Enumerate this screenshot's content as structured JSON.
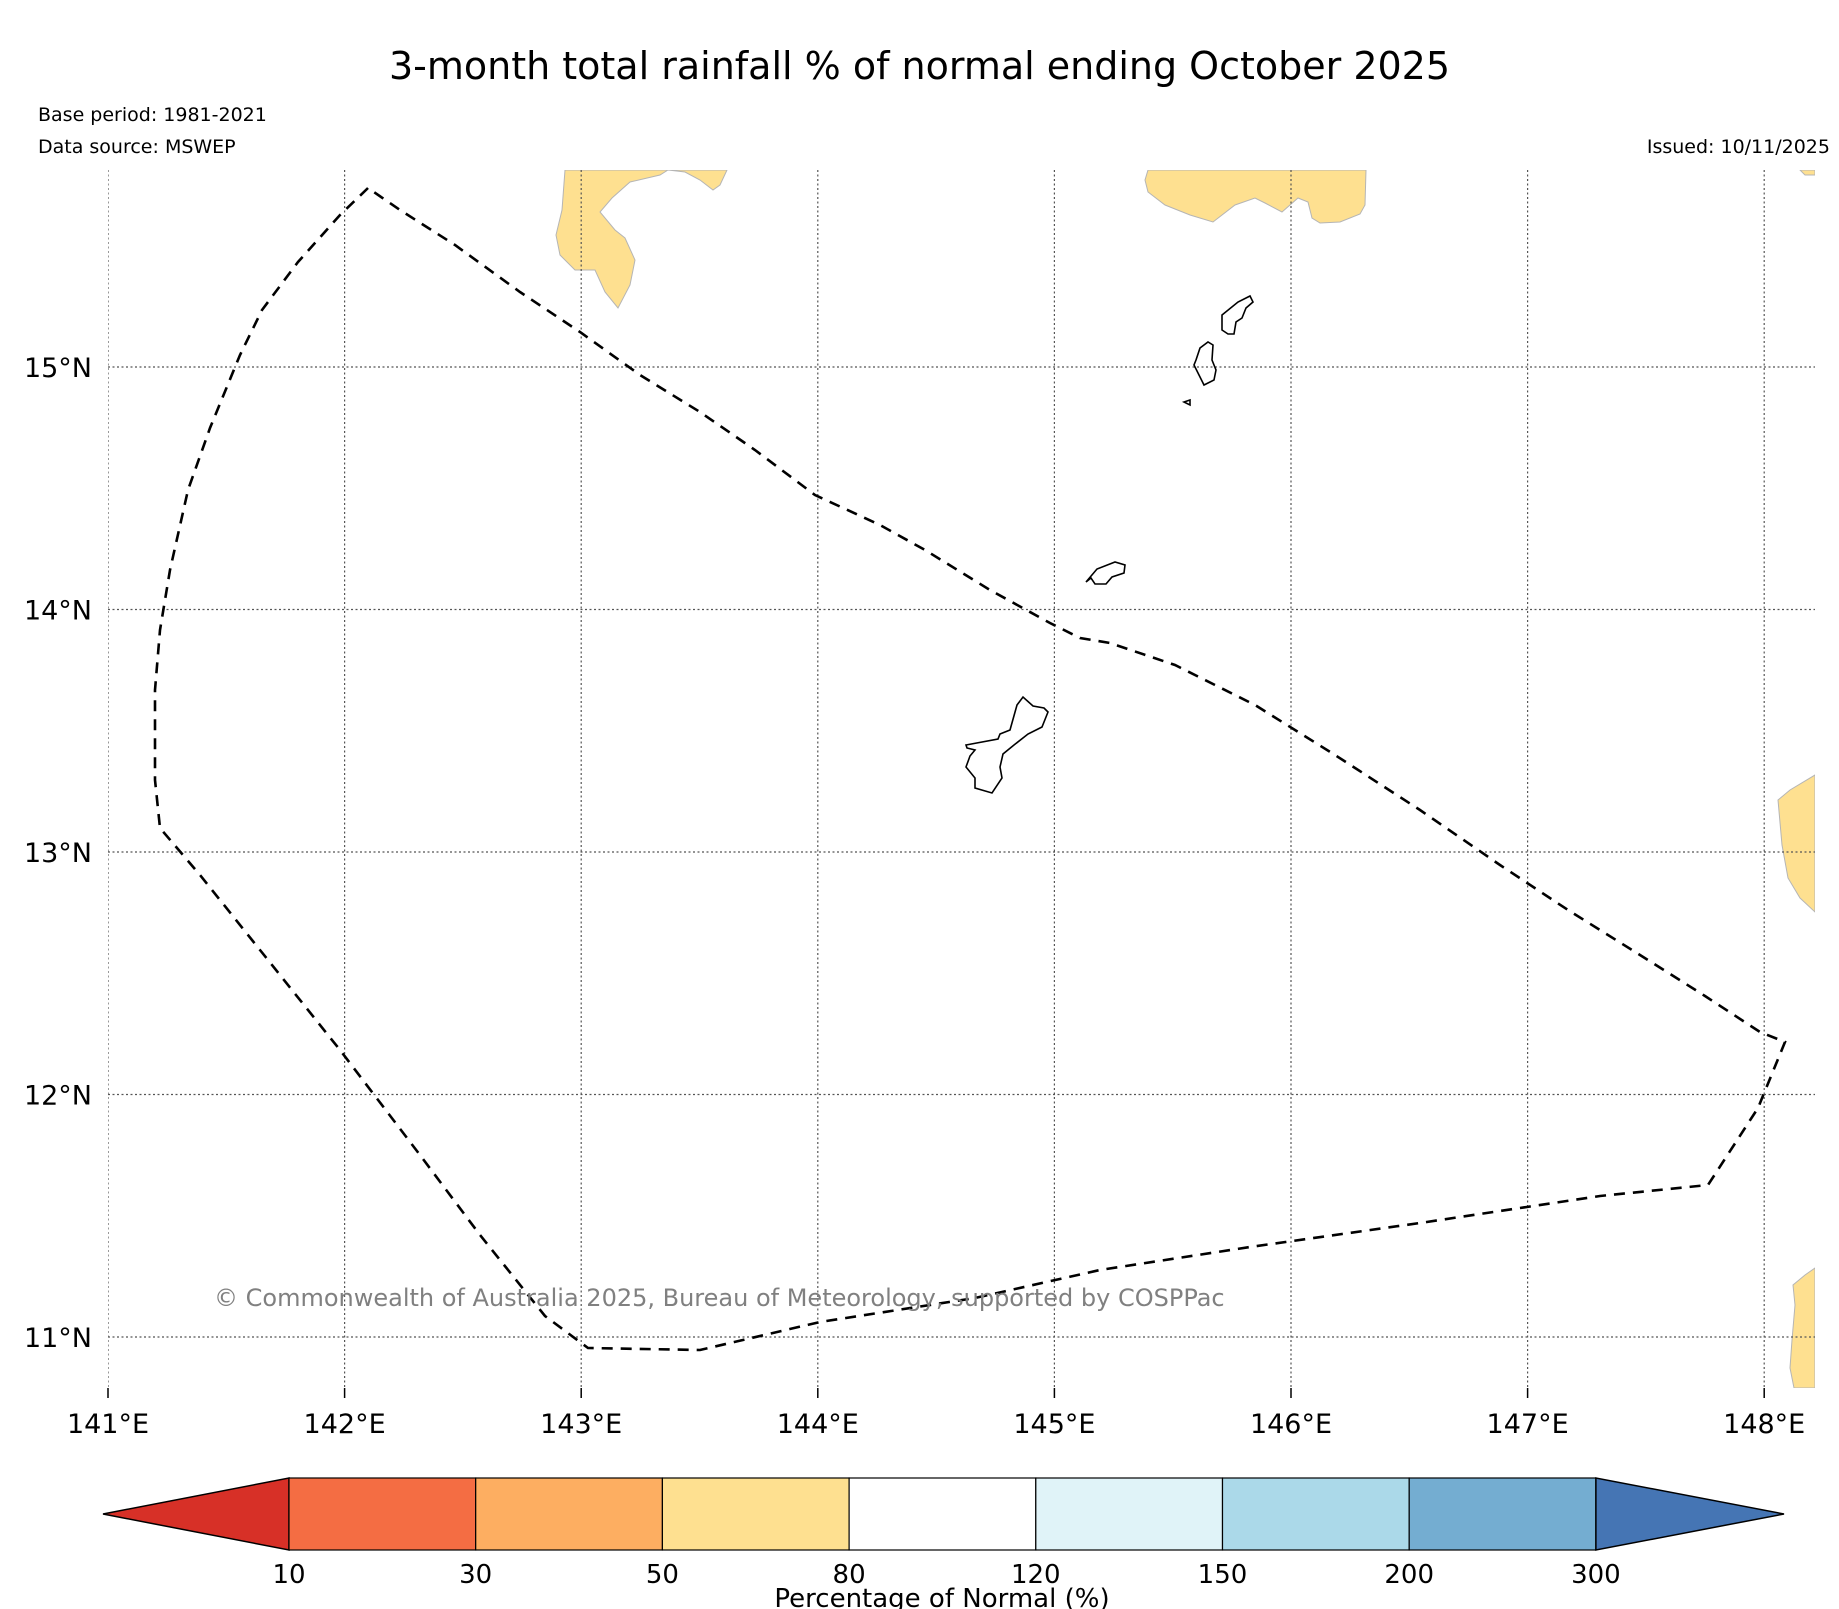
{
  "title": "3-month total rainfall % of normal ending October 2025",
  "base_period": "Base period: 1981-2021",
  "data_source": "Data source: MSWEP",
  "issued": "Issued: 10/11/2025",
  "copyright": "© Commonwealth of Australia 2025, Bureau of Meteorology, supported by COSPPac",
  "map": {
    "lon_range": [
      141.0,
      148.2
    ],
    "lat_range": [
      10.85,
      15.8
    ],
    "lon_ticks": [
      {
        "value": 141,
        "label": "141°E"
      },
      {
        "value": 142,
        "label": "142°E"
      },
      {
        "value": 143,
        "label": "143°E"
      },
      {
        "value": 144,
        "label": "144°E"
      },
      {
        "value": 145,
        "label": "145°E"
      },
      {
        "value": 146,
        "label": "146°E"
      },
      {
        "value": 147,
        "label": "147°E"
      },
      {
        "value": 148,
        "label": "148°E"
      }
    ],
    "lat_ticks": [
      {
        "value": 11,
        "label": "11°N"
      },
      {
        "value": 12,
        "label": "12°N"
      },
      {
        "value": 13,
        "label": "13°N"
      },
      {
        "value": 14,
        "label": "14°N"
      },
      {
        "value": 15,
        "label": "15°N"
      }
    ],
    "gridlines": "dotted",
    "eez_boundary_style": "dashed"
  },
  "colorbar": {
    "label": "Percentage of Normal (%)",
    "extend": "both",
    "under_color": "#d73027",
    "over_color": "#4575b4",
    "bins": [
      {
        "from": 10,
        "to": 30,
        "color": "#f46d43"
      },
      {
        "from": 30,
        "to": 50,
        "color": "#fdae61"
      },
      {
        "from": 50,
        "to": 80,
        "color": "#fee090"
      },
      {
        "from": 80,
        "to": 120,
        "color": "#ffffff"
      },
      {
        "from": 120,
        "to": 150,
        "color": "#e0f3f8"
      },
      {
        "from": 150,
        "to": 200,
        "color": "#abd9e9"
      },
      {
        "from": 200,
        "to": 300,
        "color": "#74add1"
      }
    ],
    "tick_labels": [
      "10",
      "30",
      "50",
      "80",
      "120",
      "150",
      "200",
      "300"
    ]
  },
  "colors": {
    "dry_region": "#fee090",
    "land_outline": "#000000",
    "grid": "#555555"
  }
}
